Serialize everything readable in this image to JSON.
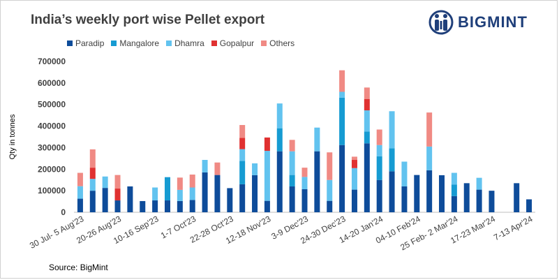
{
  "title": "India’s weekly port wise Pellet export",
  "brand": "BIGMINT",
  "source": "Source: BigMint",
  "chart_data": {
    "type": "bar",
    "stacked": true,
    "ylabel": "Qty in tonnes",
    "xlabel": "",
    "ylim": [
      0,
      700000
    ],
    "yticks": [
      0,
      100000,
      200000,
      300000,
      400000,
      500000,
      600000,
      700000
    ],
    "ytick_labels": [
      "0",
      "100000",
      "200000",
      "300000",
      "400000",
      "500000",
      "600000",
      "700000"
    ],
    "x_labels": [
      "30 Jul- 5 Aug'23",
      "20-26 Aug'23",
      "10-16 Sep'23",
      "1-7 Oct'23",
      "22-28 Oct'23",
      "12-18 Nov'23",
      "3-9 Dec'23",
      "24-30 Dec'23",
      "14-20 Jan'24",
      "04-10 Feb'24",
      "25 Feb- 2 Mar'24",
      "17-23 Mar'24",
      "7-13 Apr'24"
    ],
    "x_label_positions": [
      0,
      3,
      6,
      9,
      12,
      15,
      18,
      21,
      24,
      27,
      30,
      33,
      36
    ],
    "legend_position": "top-left",
    "series": [
      {
        "name": "Paradip",
        "color": "#0e4c9a",
        "values": [
          63000,
          100000,
          113000,
          55000,
          120000,
          52000,
          55000,
          55000,
          52000,
          57000,
          185000,
          173000,
          112000,
          130000,
          172000,
          53000,
          283000,
          120000,
          107000,
          283000,
          53000,
          312000,
          105000,
          320000,
          150000,
          190000,
          120000,
          173000,
          195000,
          172000,
          75000,
          135000,
          105000,
          100000,
          0,
          135000,
          60000
        ]
      },
      {
        "name": "Mangalore",
        "color": "#169bd2",
        "values": [
          0,
          0,
          0,
          0,
          0,
          0,
          0,
          108000,
          0,
          0,
          0,
          0,
          0,
          108000,
          0,
          0,
          107000,
          53000,
          0,
          0,
          0,
          220000,
          0,
          55000,
          110000,
          107000,
          0,
          0,
          0,
          0,
          53000,
          0,
          0,
          0,
          0,
          0,
          0
        ]
      },
      {
        "name": "Dhamra",
        "color": "#62c3ef",
        "values": [
          58000,
          55000,
          53000,
          0,
          0,
          0,
          60000,
          0,
          52000,
          58000,
          58000,
          0,
          0,
          55000,
          55000,
          232000,
          115000,
          110000,
          57000,
          110000,
          97000,
          27000,
          100000,
          98000,
          52000,
          172000,
          115000,
          0,
          110000,
          0,
          55000,
          0,
          55000,
          0,
          0,
          0,
          0
        ]
      },
      {
        "name": "Gopalpur",
        "color": "#e03131",
        "values": [
          0,
          52000,
          0,
          55000,
          0,
          0,
          0,
          0,
          0,
          0,
          0,
          0,
          0,
          52000,
          0,
          62000,
          0,
          0,
          0,
          0,
          0,
          0,
          38000,
          53000,
          0,
          0,
          0,
          0,
          0,
          0,
          0,
          0,
          0,
          0,
          0,
          0,
          0
        ]
      },
      {
        "name": "Others",
        "color": "#f08a84",
        "values": [
          62000,
          85000,
          0,
          63000,
          0,
          0,
          0,
          0,
          57000,
          60000,
          0,
          58000,
          0,
          60000,
          0,
          0,
          0,
          53000,
          43000,
          0,
          128000,
          100000,
          15000,
          53000,
          72000,
          0,
          0,
          0,
          158000,
          0,
          0,
          0,
          0,
          0,
          0,
          0,
          0
        ]
      }
    ]
  }
}
